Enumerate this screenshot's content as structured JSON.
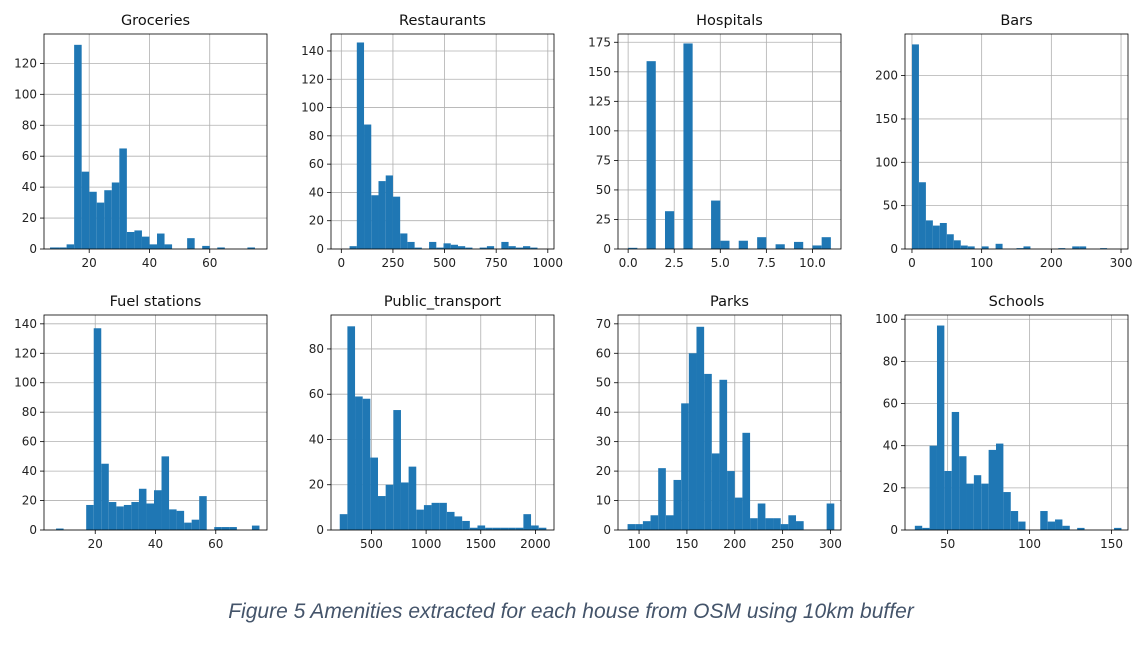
{
  "caption": "Figure 5 Amenities extracted for each house from OSM using 10km buffer",
  "colors": {
    "bar": "#1f77b4",
    "grid": "#b0b0b0",
    "axis": "#000000"
  },
  "chart_data": [
    {
      "type": "bar",
      "title": "Groceries",
      "xlim": [
        5,
        79
      ],
      "ylim": [
        0,
        139
      ],
      "xticks": [
        20,
        40,
        60
      ],
      "yticks": [
        0,
        20,
        40,
        60,
        80,
        100,
        120
      ],
      "grid": true,
      "bins": [
        [
          7,
          10
        ],
        [
          10,
          12.5
        ],
        [
          12.5,
          15
        ],
        [
          15,
          17.5
        ],
        [
          17.5,
          20
        ],
        [
          20,
          22.5
        ],
        [
          22.5,
          25
        ],
        [
          25,
          27.5
        ],
        [
          27.5,
          30
        ],
        [
          30,
          32.5
        ],
        [
          32.5,
          35
        ],
        [
          35,
          37.5
        ],
        [
          37.5,
          40
        ],
        [
          40,
          42.5
        ],
        [
          42.5,
          45
        ],
        [
          45,
          47.5
        ],
        [
          47.5,
          50
        ],
        [
          50,
          52.5
        ],
        [
          52.5,
          55
        ],
        [
          55,
          57.5
        ],
        [
          57.5,
          60
        ],
        [
          60,
          62.5
        ],
        [
          62.5,
          65
        ],
        [
          65,
          67.5
        ],
        [
          67.5,
          70
        ],
        [
          70,
          72.5
        ],
        [
          72.5,
          75
        ],
        [
          75,
          77.5
        ]
      ],
      "values": [
        1,
        1,
        3,
        132,
        50,
        37,
        30,
        38,
        43,
        65,
        11,
        12,
        8,
        3,
        10,
        3,
        0,
        0,
        7,
        0,
        2,
        0,
        1,
        0,
        0,
        0,
        1,
        0
      ]
    },
    {
      "type": "bar",
      "title": "Restaurants",
      "xlim": [
        -50,
        1030
      ],
      "ylim": [
        0,
        152
      ],
      "xticks": [
        0,
        250,
        500,
        750,
        1000
      ],
      "yticks": [
        0,
        20,
        40,
        60,
        80,
        100,
        120,
        140
      ],
      "grid": true,
      "bins": [
        [
          40,
          75
        ],
        [
          75,
          110
        ],
        [
          110,
          145
        ],
        [
          145,
          180
        ],
        [
          180,
          215
        ],
        [
          215,
          250
        ],
        [
          250,
          285
        ],
        [
          285,
          320
        ],
        [
          320,
          355
        ],
        [
          355,
          390
        ],
        [
          390,
          425
        ],
        [
          425,
          460
        ],
        [
          460,
          495
        ],
        [
          495,
          530
        ],
        [
          530,
          565
        ],
        [
          565,
          600
        ],
        [
          600,
          635
        ],
        [
          635,
          670
        ],
        [
          670,
          705
        ],
        [
          705,
          740
        ],
        [
          740,
          775
        ],
        [
          775,
          810
        ],
        [
          810,
          845
        ],
        [
          845,
          880
        ],
        [
          880,
          915
        ],
        [
          915,
          950
        ],
        [
          950,
          985
        ]
      ],
      "values": [
        2,
        146,
        88,
        38,
        48,
        52,
        37,
        11,
        5,
        1,
        0,
        5,
        1,
        4,
        3,
        2,
        1,
        0,
        1,
        2,
        0,
        5,
        2,
        1,
        2,
        1,
        0
      ]
    },
    {
      "type": "bar",
      "title": "Hospitals",
      "xlim": [
        -0.55,
        11.55
      ],
      "ylim": [
        0,
        182
      ],
      "xticks": [
        0.0,
        2.5,
        5.0,
        7.5,
        10.0
      ],
      "xticklabels": [
        "0.0",
        "2.5",
        "5.0",
        "7.5",
        "10.0"
      ],
      "yticks": [
        0,
        25,
        50,
        75,
        100,
        125,
        150,
        175
      ],
      "grid": true,
      "bins": [
        [
          0,
          0.5
        ],
        [
          0.5,
          1
        ],
        [
          1,
          1.5
        ],
        [
          1.5,
          2
        ],
        [
          2,
          2.5
        ],
        [
          2.5,
          3
        ],
        [
          3,
          3.5
        ],
        [
          3.5,
          4
        ],
        [
          4,
          4.5
        ],
        [
          4.5,
          5
        ],
        [
          5,
          5.5
        ],
        [
          5.5,
          6
        ],
        [
          6,
          6.5
        ],
        [
          6.5,
          7
        ],
        [
          7,
          7.5
        ],
        [
          7.5,
          8
        ],
        [
          8,
          8.5
        ],
        [
          8.5,
          9
        ],
        [
          9,
          9.5
        ],
        [
          9.5,
          10
        ],
        [
          10,
          10.5
        ],
        [
          10.5,
          11
        ]
      ],
      "values": [
        1,
        0,
        159,
        0,
        32,
        0,
        174,
        0,
        0,
        41,
        7,
        0,
        7,
        0,
        10,
        0,
        4,
        0,
        6,
        0,
        3,
        10
      ]
    },
    {
      "type": "bar",
      "title": "Bars",
      "xlim": [
        -10,
        310
      ],
      "ylim": [
        0,
        248
      ],
      "xticks": [
        0,
        100,
        200,
        300
      ],
      "yticks": [
        0,
        50,
        100,
        150,
        200
      ],
      "grid": true,
      "bins": [
        [
          0,
          10
        ],
        [
          10,
          20
        ],
        [
          20,
          30
        ],
        [
          30,
          40
        ],
        [
          40,
          50
        ],
        [
          50,
          60
        ],
        [
          60,
          70
        ],
        [
          70,
          80
        ],
        [
          80,
          90
        ],
        [
          90,
          100
        ],
        [
          100,
          110
        ],
        [
          110,
          120
        ],
        [
          120,
          130
        ],
        [
          130,
          140
        ],
        [
          140,
          150
        ],
        [
          150,
          160
        ],
        [
          160,
          170
        ],
        [
          170,
          180
        ],
        [
          180,
          190
        ],
        [
          190,
          200
        ],
        [
          200,
          210
        ],
        [
          210,
          220
        ],
        [
          220,
          230
        ],
        [
          230,
          240
        ],
        [
          240,
          250
        ],
        [
          250,
          260
        ],
        [
          260,
          270
        ],
        [
          270,
          280
        ],
        [
          280,
          290
        ],
        [
          290,
          300
        ]
      ],
      "values": [
        236,
        77,
        33,
        27,
        30,
        17,
        10,
        4,
        3,
        0,
        3,
        0,
        6,
        0,
        0,
        1,
        3,
        0,
        0,
        0,
        0,
        1,
        0,
        3,
        3,
        0,
        0,
        1,
        0,
        0
      ]
    },
    {
      "type": "bar",
      "title": "Fuel stations",
      "xlim": [
        3,
        77
      ],
      "ylim": [
        0,
        146
      ],
      "xticks": [
        20,
        40,
        60
      ],
      "yticks": [
        0,
        20,
        40,
        60,
        80,
        100,
        120,
        140
      ],
      "grid": true,
      "bins": [
        [
          7,
          9.5
        ],
        [
          9.5,
          12
        ],
        [
          12,
          14.5
        ],
        [
          14.5,
          17
        ],
        [
          17,
          19.5
        ],
        [
          19.5,
          22
        ],
        [
          22,
          24.5
        ],
        [
          24.5,
          27
        ],
        [
          27,
          29.5
        ],
        [
          29.5,
          32
        ],
        [
          32,
          34.5
        ],
        [
          34.5,
          37
        ],
        [
          37,
          39.5
        ],
        [
          39.5,
          42
        ],
        [
          42,
          44.5
        ],
        [
          44.5,
          47
        ],
        [
          47,
          49.5
        ],
        [
          49.5,
          52
        ],
        [
          52,
          54.5
        ],
        [
          54.5,
          57
        ],
        [
          57,
          59.5
        ],
        [
          59.5,
          62
        ],
        [
          62,
          64.5
        ],
        [
          64.5,
          67
        ],
        [
          67,
          69.5
        ],
        [
          69.5,
          72
        ],
        [
          72,
          74.5
        ]
      ],
      "values": [
        1,
        0,
        0,
        0,
        17,
        137,
        45,
        19,
        16,
        17,
        19,
        28,
        18,
        27,
        50,
        14,
        13,
        5,
        7,
        23,
        0,
        2,
        2,
        2,
        0,
        0,
        3
      ]
    },
    {
      "type": "bar",
      "title": "Public_transport",
      "xlim": [
        130,
        2170
      ],
      "ylim": [
        0,
        95
      ],
      "xticks": [
        500,
        1000,
        1500,
        2000
      ],
      "yticks": [
        0,
        20,
        40,
        60,
        80
      ],
      "grid": true,
      "bins": [
        [
          210,
          280
        ],
        [
          280,
          350
        ],
        [
          350,
          420
        ],
        [
          420,
          490
        ],
        [
          490,
          560
        ],
        [
          560,
          630
        ],
        [
          630,
          700
        ],
        [
          700,
          770
        ],
        [
          770,
          840
        ],
        [
          840,
          910
        ],
        [
          910,
          980
        ],
        [
          980,
          1050
        ],
        [
          1050,
          1120
        ],
        [
          1120,
          1190
        ],
        [
          1190,
          1260
        ],
        [
          1260,
          1330
        ],
        [
          1330,
          1400
        ],
        [
          1400,
          1470
        ],
        [
          1470,
          1540
        ],
        [
          1540,
          1610
        ],
        [
          1610,
          1680
        ],
        [
          1680,
          1750
        ],
        [
          1750,
          1820
        ],
        [
          1820,
          1890
        ],
        [
          1890,
          1960
        ],
        [
          1960,
          2030
        ],
        [
          2030,
          2100
        ]
      ],
      "values": [
        7,
        90,
        59,
        58,
        32,
        15,
        20,
        53,
        21,
        28,
        9,
        11,
        12,
        12,
        8,
        6,
        4,
        1,
        2,
        1,
        1,
        1,
        1,
        1,
        7,
        2,
        1
      ]
    },
    {
      "type": "bar",
      "title": "Parks",
      "xlim": [
        78,
        311
      ],
      "ylim": [
        0,
        73
      ],
      "xticks": [
        100,
        150,
        200,
        250,
        300
      ],
      "yticks": [
        0,
        10,
        20,
        30,
        40,
        50,
        60,
        70
      ],
      "grid": true,
      "bins": [
        [
          88,
          96
        ],
        [
          96,
          104
        ],
        [
          104,
          112
        ],
        [
          112,
          120
        ],
        [
          120,
          128
        ],
        [
          128,
          136
        ],
        [
          136,
          144
        ],
        [
          144,
          152
        ],
        [
          152,
          160
        ],
        [
          160,
          168
        ],
        [
          168,
          176
        ],
        [
          176,
          184
        ],
        [
          184,
          192
        ],
        [
          192,
          200
        ],
        [
          200,
          208
        ],
        [
          208,
          216
        ],
        [
          216,
          224
        ],
        [
          224,
          232
        ],
        [
          232,
          240
        ],
        [
          240,
          248
        ],
        [
          248,
          256
        ],
        [
          256,
          264
        ],
        [
          264,
          272
        ],
        [
          272,
          280
        ],
        [
          280,
          288
        ],
        [
          288,
          296
        ],
        [
          296,
          304
        ]
      ],
      "values": [
        2,
        2,
        3,
        5,
        21,
        5,
        17,
        43,
        60,
        69,
        53,
        26,
        51,
        20,
        11,
        33,
        4,
        9,
        4,
        4,
        2,
        5,
        3,
        0,
        0,
        0,
        9
      ]
    },
    {
      "type": "bar",
      "title": "Schools",
      "xlim": [
        24,
        160
      ],
      "ylim": [
        0,
        102
      ],
      "xticks": [
        50,
        100,
        150
      ],
      "yticks": [
        0,
        20,
        40,
        60,
        80,
        100
      ],
      "grid": true,
      "bins": [
        [
          30,
          34.5
        ],
        [
          34.5,
          39
        ],
        [
          39,
          43.5
        ],
        [
          43.5,
          48
        ],
        [
          48,
          52.5
        ],
        [
          52.5,
          57
        ],
        [
          57,
          61.5
        ],
        [
          61.5,
          66
        ],
        [
          66,
          70.5
        ],
        [
          70.5,
          75
        ],
        [
          75,
          79.5
        ],
        [
          79.5,
          84
        ],
        [
          84,
          88.5
        ],
        [
          88.5,
          93
        ],
        [
          93,
          97.5
        ],
        [
          97.5,
          102
        ],
        [
          102,
          106.5
        ],
        [
          106.5,
          111
        ],
        [
          111,
          115.5
        ],
        [
          115.5,
          120
        ],
        [
          120,
          124.5
        ],
        [
          124.5,
          129
        ],
        [
          129,
          133.5
        ],
        [
          133.5,
          138
        ],
        [
          138,
          142.5
        ],
        [
          142.5,
          147
        ],
        [
          147,
          151.5
        ],
        [
          151.5,
          156
        ]
      ],
      "values": [
        2,
        1,
        40,
        97,
        28,
        56,
        35,
        22,
        26,
        22,
        38,
        41,
        18,
        9,
        4,
        0,
        0,
        9,
        4,
        5,
        2,
        0,
        1,
        0,
        0,
        0,
        0,
        1
      ]
    }
  ]
}
